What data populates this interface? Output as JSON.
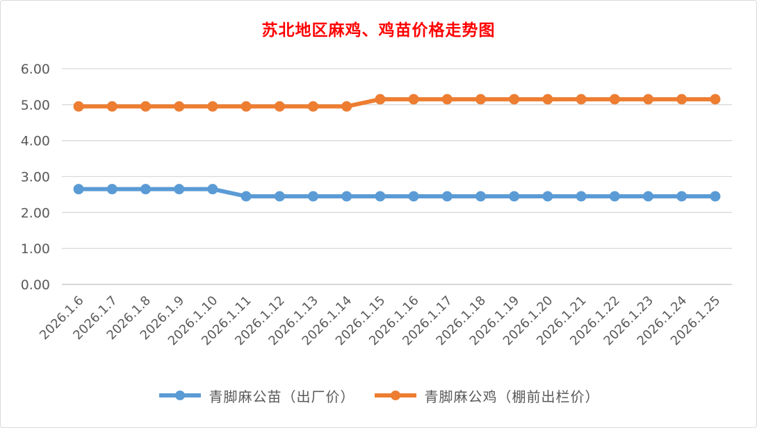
{
  "chart_data": {
    "type": "line",
    "title": "苏北地区麻鸡、鸡苗价格走势图",
    "xlabel": "",
    "ylabel": "",
    "categories": [
      "2026.1.6",
      "2026.1.7",
      "2026.1.8",
      "2026.1.9",
      "2026.1.10",
      "2026.1.11",
      "2026.1.12",
      "2026.1.13",
      "2026.1.14",
      "2026.1.15",
      "2026.1.16",
      "2026.1.17",
      "2026.1.18",
      "2026.1.19",
      "2026.1.20",
      "2026.1.21",
      "2026.1.22",
      "2026.1.23",
      "2026.1.24",
      "2026.1.25"
    ],
    "y_ticks": [
      "0.00",
      "1.00",
      "2.00",
      "3.00",
      "4.00",
      "5.00",
      "6.00"
    ],
    "ylim": [
      0,
      6
    ],
    "grid": true,
    "legend_position": "bottom",
    "series": [
      {
        "name": "青脚麻公苗（出厂价）",
        "color": "#5b9bd5",
        "values": [
          2.65,
          2.65,
          2.65,
          2.65,
          2.65,
          2.45,
          2.45,
          2.45,
          2.45,
          2.45,
          2.45,
          2.45,
          2.45,
          2.45,
          2.45,
          2.45,
          2.45,
          2.45,
          2.45,
          2.45
        ]
      },
      {
        "name": "青脚麻公鸡（棚前出栏价）",
        "color": "#ed7d31",
        "values": [
          4.95,
          4.95,
          4.95,
          4.95,
          4.95,
          4.95,
          4.95,
          4.95,
          4.95,
          5.15,
          5.15,
          5.15,
          5.15,
          5.15,
          5.15,
          5.15,
          5.15,
          5.15,
          5.15,
          5.15
        ]
      }
    ]
  }
}
